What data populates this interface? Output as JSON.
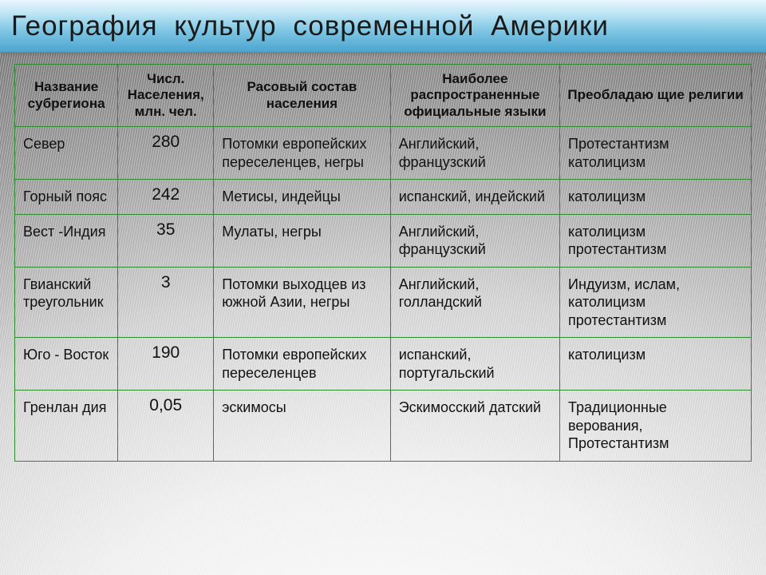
{
  "title": "География культур современной Америки",
  "table": {
    "headers": {
      "name": "Название субрегиона",
      "population": "Числ. Населения, млн. чел.",
      "racial": "Расовый состав населения",
      "languages": "Наиболее распространенные официальные языки",
      "religions": "Преобладаю щие религии"
    },
    "rows": [
      {
        "name": "Север",
        "population": "280",
        "racial": "Потомки европейских переселенцев, негры",
        "languages": "Английский, французский",
        "religions": "Протестантизм католицизм"
      },
      {
        "name": "Горный пояс",
        "population": "242",
        "racial": "Метисы, индейцы",
        "languages": "испанский, индейский",
        "religions": "католицизм"
      },
      {
        "name": "Вест -Индия",
        "population": "35",
        "racial": "Мулаты, негры",
        "languages": "Английский, французский",
        "religions": "католицизм протестантизм"
      },
      {
        "name": "Гвианский треугольник",
        "population": "3",
        "racial": "Потомки выходцев из южной Азии, негры",
        "languages": "Английский, голландский",
        "religions": "Индуизм, ислам, католицизм протестантизм"
      },
      {
        "name": "Юго - Восток",
        "population": "190",
        "racial": "Потомки европейских переселенцев",
        "languages": "испанский, португальский",
        "religions": "католицизм"
      },
      {
        "name": "Гренлан дия",
        "population": "0,05",
        "racial": "эскимосы",
        "languages": "Эскимосский датский",
        "religions": "Традиционные верования, Протестантизм"
      }
    ]
  },
  "style": {
    "title_gradient": [
      "#e9f6fc",
      "#bfe6f5",
      "#7ec5e3",
      "#4ba5cf"
    ],
    "border_color": "#2e8b2e",
    "header_fontsize": 17,
    "cell_fontsize": 18,
    "num_fontsize": 21,
    "title_fontsize": 35,
    "bg_gradient": [
      "#fefefe",
      "#efefef",
      "#d0d0d0",
      "#9a9a9a",
      "#6f6f6f"
    ]
  }
}
